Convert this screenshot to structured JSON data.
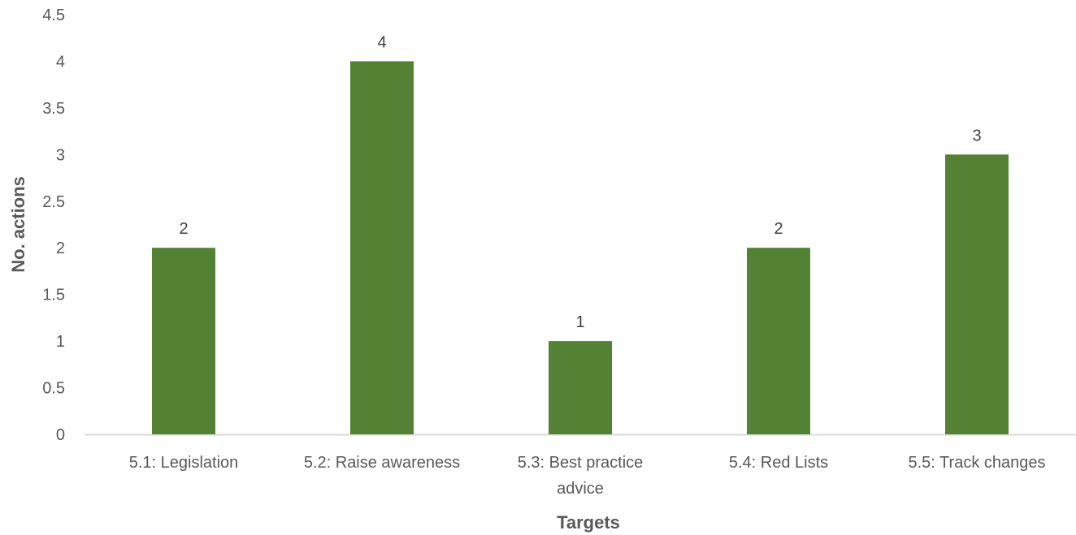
{
  "chart_data": {
    "type": "bar",
    "title": "",
    "xlabel": "Targets",
    "ylabel": "No. actions",
    "categories": [
      [
        "5.1: Legislation"
      ],
      [
        "5.2: Raise awareness"
      ],
      [
        "5.3: Best practice",
        "advice"
      ],
      [
        "5.4: Red Lists"
      ],
      [
        "5.5: Track changes"
      ]
    ],
    "series": [
      {
        "values": [
          2,
          4,
          1,
          2,
          3
        ],
        "color": "#548235"
      }
    ],
    "data_labels": [
      "2",
      "4",
      "1",
      "2",
      "3"
    ],
    "ylim": [
      0,
      4.5
    ],
    "yticks": [
      0,
      0.5,
      1,
      1.5,
      2,
      2.5,
      3,
      3.5,
      4,
      4.5
    ],
    "ytick_labels": [
      "0",
      "0.5",
      "1",
      "1.5",
      "2",
      "2.5",
      "3",
      "3.5",
      "4",
      "4.5"
    ],
    "grid": false,
    "legend": "none",
    "colors": {
      "bar": "#548235",
      "axis_line": "#d9d9d9",
      "tick_text": "#595959",
      "label_text": "#404040"
    }
  }
}
